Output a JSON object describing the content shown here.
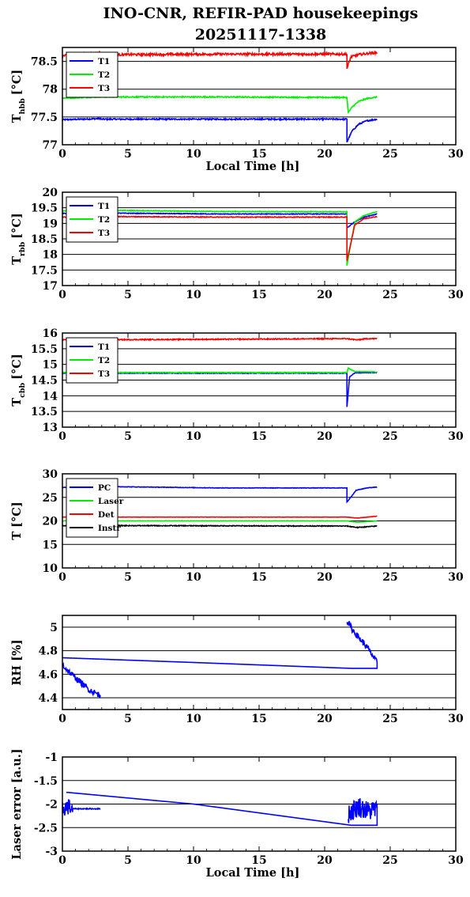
{
  "title_line1": "INO-CNR, REFIR-PAD housekeepings",
  "title_line2": "20251117-1338",
  "colors": {
    "blue": "#0000ff",
    "green": "#00ee00",
    "red": "#ff0000",
    "black": "#000000"
  },
  "chart_data": [
    {
      "type": "line",
      "ylabel": "T",
      "ylabel_sub": "hbb",
      "ylabel_unit": "[°C]",
      "xlabel": "Local Time [h]",
      "xlim": [
        0,
        30
      ],
      "ylim": [
        77,
        78.75
      ],
      "xticks": [
        0,
        5,
        10,
        15,
        20,
        25,
        30
      ],
      "yticks": [
        77,
        77.5,
        78,
        78.5
      ],
      "yticklabels": [
        "77",
        "77.5",
        "78",
        "78.5"
      ],
      "grid": "horizontal",
      "legend": "top-left",
      "series": [
        {
          "name": "T1",
          "color": "blue",
          "noise": 0.012,
          "x": [
            0,
            2.9,
            2.9,
            12,
            21.7,
            21.7,
            22.1,
            22.6,
            23.2,
            24
          ],
          "y": [
            77.45,
            77.47,
            77.46,
            77.46,
            77.46,
            77.05,
            77.25,
            77.37,
            77.43,
            77.46
          ]
        },
        {
          "name": "T2",
          "color": "green",
          "noise": 0.01,
          "x": [
            0,
            2.9,
            2.9,
            12,
            21.7,
            21.8,
            22.1,
            22.6,
            23.2,
            24
          ],
          "y": [
            77.84,
            77.86,
            77.86,
            77.86,
            77.85,
            77.58,
            77.68,
            77.78,
            77.83,
            77.86
          ]
        },
        {
          "name": "T3",
          "color": "red",
          "noise": 0.02,
          "x": [
            0,
            2.9,
            2.9,
            12,
            21.7,
            21.7,
            22.0,
            22.6,
            23.2,
            24
          ],
          "y": [
            78.6,
            78.64,
            78.62,
            78.63,
            78.63,
            78.37,
            78.58,
            78.62,
            78.64,
            78.66
          ]
        }
      ]
    },
    {
      "type": "line",
      "ylabel": "T",
      "ylabel_sub": "rbb",
      "ylabel_unit": "[°C]",
      "xlabel": "",
      "xlim": [
        0,
        30
      ],
      "ylim": [
        17,
        20
      ],
      "xticks": [
        0,
        5,
        10,
        15,
        20,
        25,
        30
      ],
      "yticks": [
        17,
        17.5,
        18,
        18.5,
        19,
        19.5,
        20
      ],
      "yticklabels": [
        "17",
        "17.5",
        "18",
        "18.5",
        "19",
        "19.5",
        "20"
      ],
      "grid": "horizontal",
      "legend": "top-left",
      "series": [
        {
          "name": "T1",
          "color": "blue",
          "noise": 0.01,
          "x": [
            0,
            3,
            12,
            21.7,
            21.7,
            22.3,
            23,
            24
          ],
          "y": [
            19.32,
            19.33,
            19.3,
            19.3,
            18.85,
            19.05,
            19.2,
            19.3
          ]
        },
        {
          "name": "T2",
          "color": "green",
          "noise": 0.01,
          "x": [
            0,
            3,
            12,
            21.7,
            21.7,
            22.3,
            23,
            24
          ],
          "y": [
            19.4,
            19.42,
            19.38,
            19.37,
            17.65,
            19.05,
            19.25,
            19.38
          ]
        },
        {
          "name": "T3",
          "color": "red",
          "noise": 0.012,
          "x": [
            0,
            3,
            12,
            21.7,
            21.7,
            22.3,
            23,
            24
          ],
          "y": [
            19.2,
            19.22,
            19.2,
            19.2,
            17.8,
            18.95,
            19.15,
            19.22
          ]
        }
      ]
    },
    {
      "type": "line",
      "ylabel": "T",
      "ylabel_sub": "cbb",
      "ylabel_unit": "[°C]",
      "xlabel": "",
      "xlim": [
        0,
        30
      ],
      "ylim": [
        13,
        16
      ],
      "xticks": [
        0,
        5,
        10,
        15,
        20,
        25,
        30
      ],
      "yticks": [
        13,
        13.5,
        14,
        14.5,
        15,
        15.5,
        16
      ],
      "yticklabels": [
        "13",
        "13.5",
        "14",
        "14.5",
        "15",
        "15.5",
        "16"
      ],
      "grid": "horizontal",
      "legend": "top-left",
      "series": [
        {
          "name": "T1",
          "color": "blue",
          "noise": 0.01,
          "x": [
            0,
            12,
            21.7,
            21.7,
            21.9,
            22.3,
            24
          ],
          "y": [
            14.72,
            14.72,
            14.72,
            13.65,
            14.6,
            14.73,
            14.74
          ]
        },
        {
          "name": "T2",
          "color": "green",
          "noise": 0.01,
          "x": [
            0,
            12,
            21.7,
            21.8,
            22.3,
            24
          ],
          "y": [
            14.74,
            14.74,
            14.74,
            14.88,
            14.77,
            14.76
          ]
        },
        {
          "name": "T3",
          "color": "red",
          "noise": 0.015,
          "x": [
            0,
            12,
            21.7,
            22.5,
            23.2,
            24
          ],
          "y": [
            15.78,
            15.8,
            15.82,
            15.78,
            15.82,
            15.82
          ]
        }
      ]
    },
    {
      "type": "line",
      "ylabel": "T [°C]",
      "ylabel_sub": "",
      "ylabel_unit": "",
      "xlabel": "",
      "xlim": [
        0,
        30
      ],
      "ylim": [
        10,
        30
      ],
      "xticks": [
        0,
        5,
        10,
        15,
        20,
        25,
        30
      ],
      "yticks": [
        10,
        15,
        20,
        25,
        30
      ],
      "yticklabels": [
        "10",
        "15",
        "20",
        "25",
        "30"
      ],
      "grid": "horizontal",
      "legend": "top-left",
      "series": [
        {
          "name": "PC",
          "color": "blue",
          "noise": 0.05,
          "x": [
            0,
            3,
            12,
            21.7,
            21.7,
            22.4,
            23.2,
            24
          ],
          "y": [
            27.1,
            27.3,
            27.0,
            27.0,
            24.0,
            26.5,
            27.0,
            27.2
          ]
        },
        {
          "name": "Laser",
          "color": "green",
          "noise": 0.03,
          "x": [
            0,
            3,
            21.7,
            22.5,
            24
          ],
          "y": [
            20.0,
            20.0,
            20.0,
            19.7,
            20.0
          ]
        },
        {
          "name": "Det",
          "color": "red",
          "noise": 0.03,
          "x": [
            0,
            3,
            21.7,
            22.5,
            24
          ],
          "y": [
            20.8,
            20.8,
            20.8,
            20.6,
            21.0
          ]
        },
        {
          "name": "Instr",
          "color": "black",
          "noise": 0.08,
          "x": [
            0,
            3,
            21.7,
            22.5,
            24
          ],
          "y": [
            19.0,
            19.0,
            18.9,
            18.6,
            18.9
          ]
        }
      ]
    },
    {
      "type": "line",
      "ylabel": "RH [%]",
      "ylabel_sub": "",
      "ylabel_unit": "",
      "xlabel": "",
      "xlim": [
        0,
        30
      ],
      "ylim": [
        4.3,
        5.1
      ],
      "xticks": [
        0,
        5,
        10,
        15,
        20,
        25,
        30
      ],
      "yticks": [
        4.4,
        4.6,
        4.8,
        5
      ],
      "yticklabels": [
        "4.4",
        "4.6",
        "4.8",
        "5"
      ],
      "grid": "horizontal",
      "legend": "none",
      "series": [
        {
          "name": "",
          "color": "blue",
          "noise": 0.025,
          "x": [
            0,
            0.5,
            1.2,
            2.0,
            2.9
          ],
          "y": [
            4.68,
            4.62,
            4.55,
            4.47,
            4.42
          ]
        },
        {
          "name": "",
          "color": "blue",
          "noise": 0,
          "x": [
            0,
            10,
            22,
            24,
            24
          ],
          "y": [
            4.74,
            4.7,
            4.65,
            4.65,
            4.7
          ]
        },
        {
          "name": "",
          "color": "blue",
          "noise": 0.025,
          "x": [
            21.7,
            22.1,
            22.7,
            23.3,
            24
          ],
          "y": [
            5.06,
            4.98,
            4.9,
            4.82,
            4.7
          ]
        }
      ]
    },
    {
      "type": "line",
      "ylabel": "Laser error [a.u.]",
      "ylabel_sub": "",
      "ylabel_unit": "",
      "xlabel": "Local Time [h]",
      "xlim": [
        0,
        30
      ],
      "ylim": [
        -3,
        -1
      ],
      "xticks": [
        0,
        5,
        10,
        15,
        20,
        25,
        30
      ],
      "yticks": [
        -3,
        -2.5,
        -2,
        -1.5,
        -1
      ],
      "yticklabels": [
        "-3",
        "-2.5",
        "-2",
        "-1.5",
        "-1"
      ],
      "grid": "horizontal",
      "legend": "none",
      "series": [
        {
          "name": "",
          "color": "blue",
          "noise": 0.18,
          "x": [
            0,
            0.4,
            0.8
          ],
          "y": [
            -2.1,
            -2.05,
            -2.1
          ]
        },
        {
          "name": "",
          "color": "blue",
          "noise": 0.01,
          "x": [
            0.8,
            2.9
          ],
          "y": [
            -2.1,
            -2.1
          ]
        },
        {
          "name": "",
          "color": "blue",
          "noise": 0,
          "x": [
            0.3,
            10,
            22,
            24,
            24
          ],
          "y": [
            -1.75,
            -2.0,
            -2.45,
            -2.45,
            -2.0
          ]
        },
        {
          "name": "",
          "color": "blue",
          "noise": 0.22,
          "x": [
            21.8,
            22.6,
            23.3,
            24
          ],
          "y": [
            -2.2,
            -2.05,
            -2.15,
            -2.1
          ]
        }
      ]
    }
  ]
}
